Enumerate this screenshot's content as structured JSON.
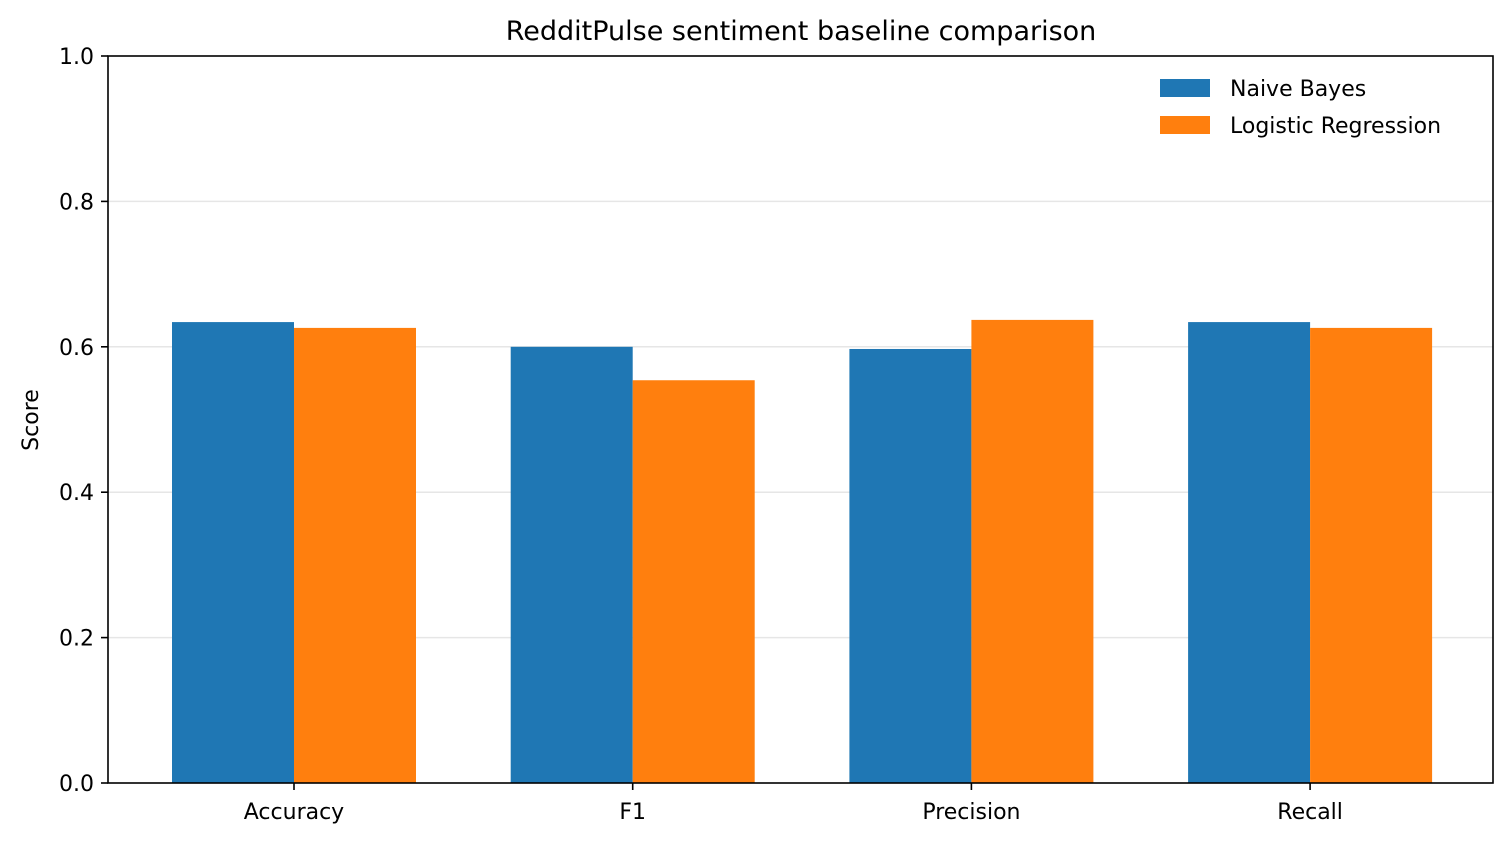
{
  "chart_data": {
    "type": "bar",
    "title": "RedditPulse sentiment baseline comparison",
    "xlabel": "",
    "ylabel": "Score",
    "categories": [
      "Accuracy",
      "F1",
      "Precision",
      "Recall"
    ],
    "series": [
      {
        "name": "Naive Bayes",
        "color": "#1f77b4",
        "values": [
          0.634,
          0.6,
          0.597,
          0.634
        ]
      },
      {
        "name": "Logistic Regression",
        "color": "#ff7f0e",
        "values": [
          0.626,
          0.554,
          0.637,
          0.626
        ]
      }
    ],
    "ylim": [
      0,
      1.0
    ],
    "yticks": [
      "0.0",
      "0.2",
      "0.4",
      "0.6",
      "0.8",
      "1.0"
    ],
    "grid": "y",
    "legend": "top-right"
  }
}
